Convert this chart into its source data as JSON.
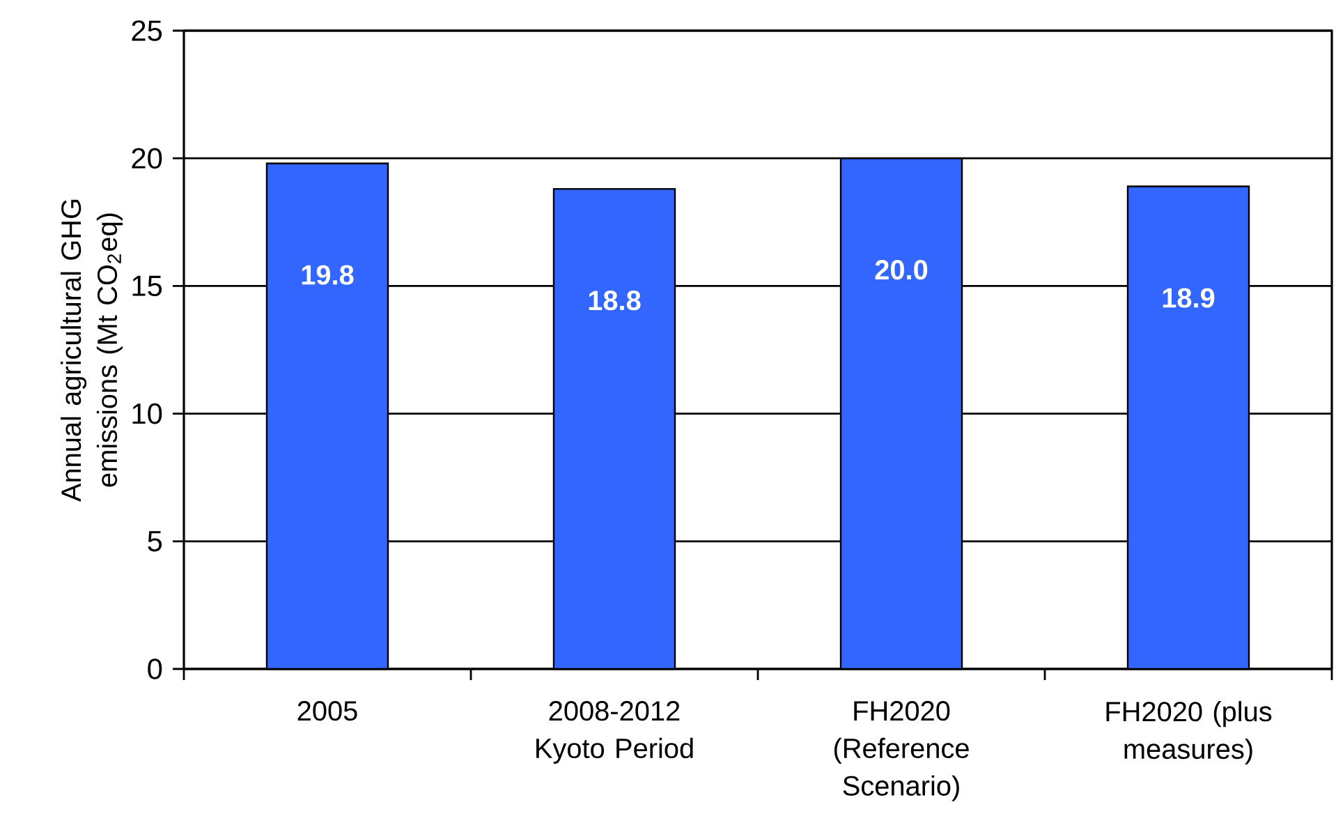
{
  "chart_data": {
    "type": "bar",
    "ylabel": "Annual agricultural GHG emissions (Mt CO$_{2}$eq)",
    "categories": [
      "2005",
      "2008-2012 Kyoto Period",
      "FH2020 (Reference Scenario)",
      "FH2020 (plus measures)"
    ],
    "values": [
      19.8,
      18.8,
      20.0,
      18.9
    ],
    "color": "#3366ff",
    "ylim": [
      0,
      25
    ],
    "yticks": [
      0,
      5,
      10,
      15,
      20,
      25
    ],
    "grid": "y",
    "value_labels": [
      "19.8",
      "18.8",
      "20.0",
      "18.9"
    ]
  }
}
